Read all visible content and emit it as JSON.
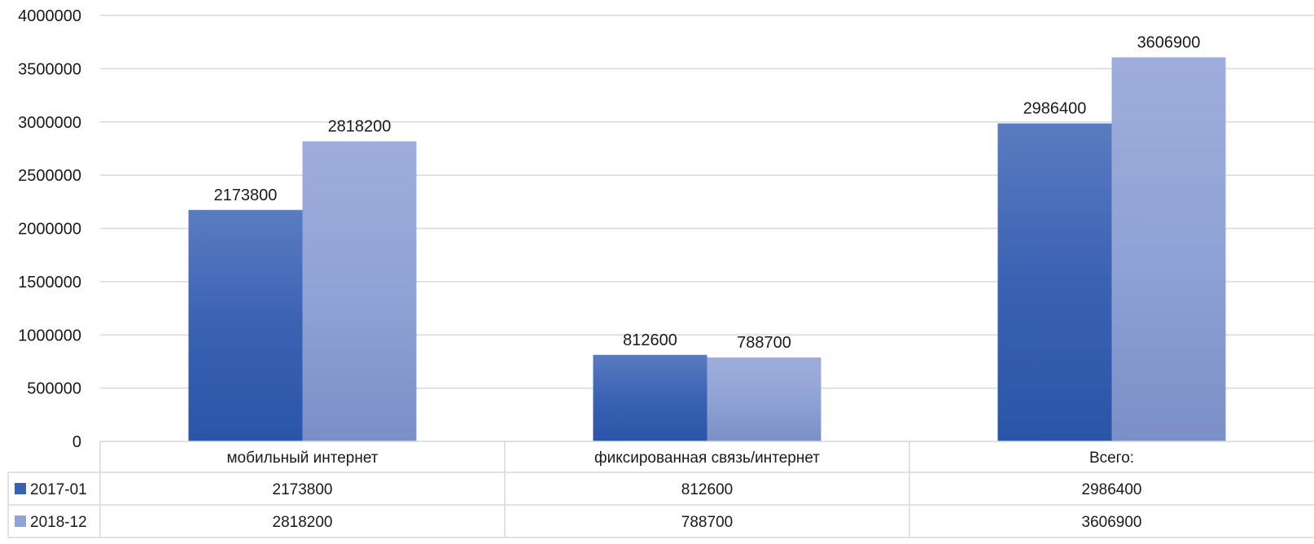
{
  "chart_data": {
    "type": "bar",
    "title": "",
    "xlabel": "",
    "ylabel": "",
    "categories": [
      "мобильный интернет",
      "фиксированная связь/интернет",
      "Всего:"
    ],
    "series": [
      {
        "name": "2017-01",
        "values": [
          2173800,
          812600,
          2986400
        ],
        "color": "#3a62b3",
        "color_top": "#5b7bc0",
        "color_bottom": "#2a55a8"
      },
      {
        "name": "2018-12",
        "values": [
          2818200,
          788700,
          3606900
        ],
        "color": "#90a3d6",
        "color_top": "#9eaddb",
        "color_bottom": "#7a8fc6"
      }
    ],
    "ylim": [
      0,
      4000000
    ],
    "yticks": [
      0,
      500000,
      1000000,
      1500000,
      2000000,
      2500000,
      3000000,
      3500000,
      4000000
    ],
    "ytick_labels": [
      "0",
      "500000",
      "1000000",
      "1500000",
      "2000000",
      "2500000",
      "3000000",
      "3500000",
      "4000000"
    ],
    "grid": true,
    "legend": "data-table-below",
    "data_table": true,
    "data_labels": true
  }
}
